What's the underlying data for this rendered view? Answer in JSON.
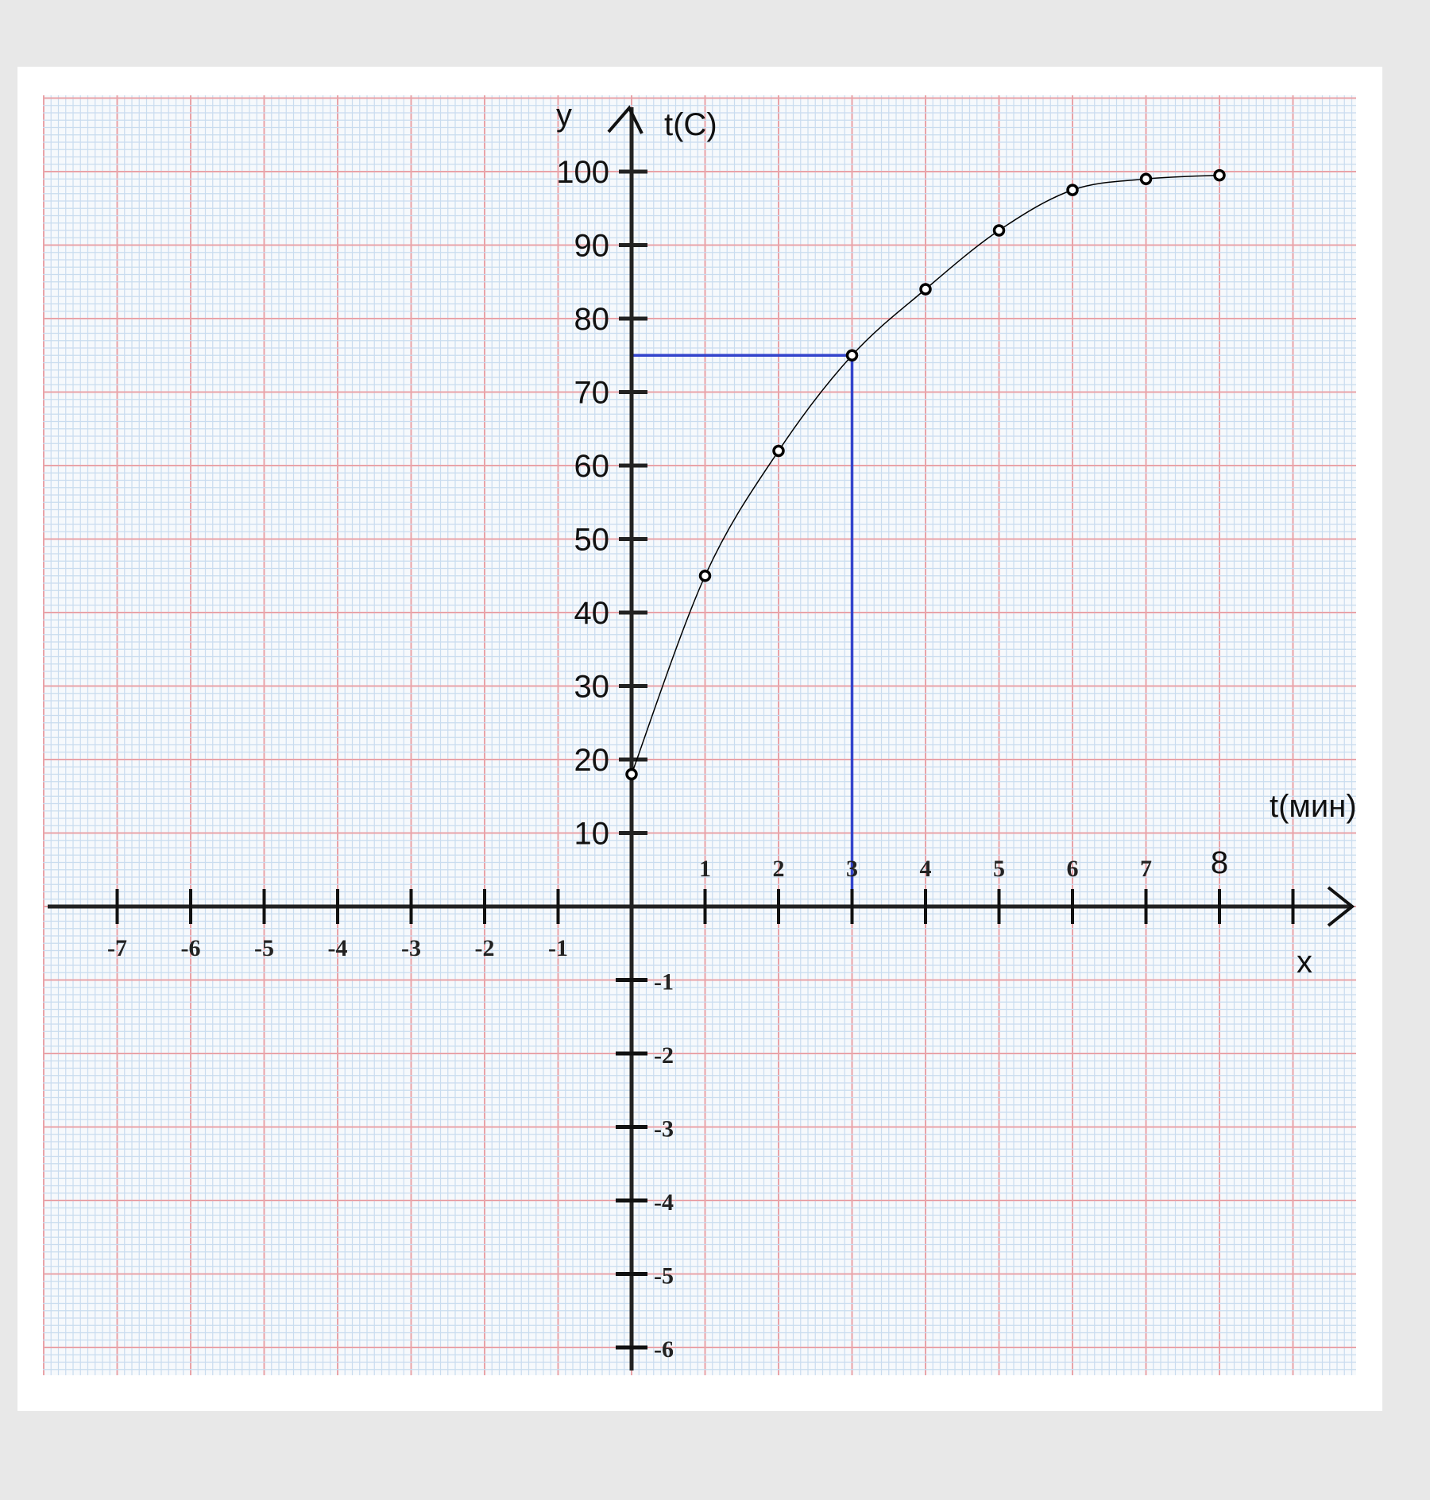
{
  "chart_data": {
    "type": "line",
    "x_axis_label": "x",
    "x_axis_unit_label": "t(мин)",
    "y_axis_label": "y",
    "y_axis_unit_label": "t(C)",
    "x_ticks_positive": [
      "1",
      "2",
      "3",
      "4",
      "5",
      "6",
      "7",
      "8"
    ],
    "x_ticks_negative": [
      "-7",
      "-6",
      "-5",
      "-4",
      "-3",
      "-2",
      "-1"
    ],
    "y_ticks_positive": [
      "10",
      "20",
      "30",
      "40",
      "50",
      "60",
      "70",
      "80",
      "90",
      "100"
    ],
    "y_ticks_negative": [
      "-1",
      "-2",
      "-3",
      "-4",
      "-5",
      "-6"
    ],
    "xlim": [
      -7.5,
      9
    ],
    "ylim_positive": [
      0,
      100
    ],
    "grid": true,
    "series": [
      {
        "x": [
          0,
          1,
          2,
          3,
          4,
          5,
          6,
          7,
          8
        ],
        "y": [
          18,
          45,
          62,
          75,
          84,
          92,
          97.5,
          99,
          99.5
        ],
        "color": "#000000"
      }
    ],
    "guide_point": {
      "x": 3,
      "y": 75,
      "color": "#3344cc"
    },
    "colors": {
      "paper_minor": "#c9dcef",
      "paper_major": "#e9a3a8",
      "background": "#e8e8e8"
    }
  }
}
